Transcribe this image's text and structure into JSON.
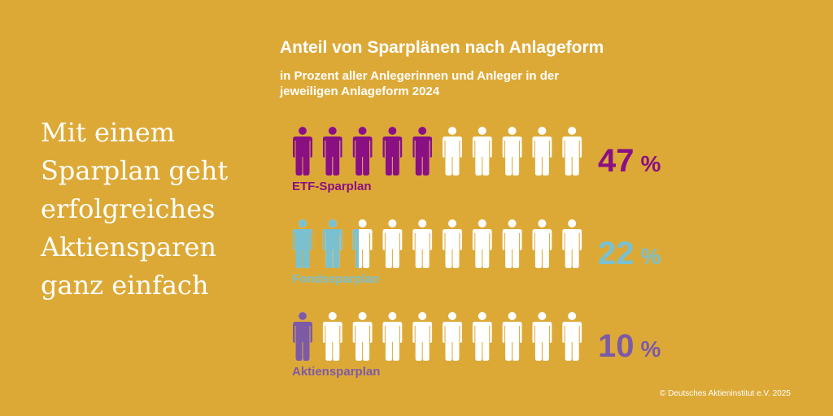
{
  "background": "#DDA936",
  "headline": [
    "Mit einem",
    "Sparplan geht",
    "erfolgreiches",
    "Aktiensparen",
    "ganz einfach"
  ],
  "chart_data": {
    "type": "bar",
    "title": "Anteil von Sparplänen nach Anlageform",
    "subtitle_lines": [
      "in Prozent aller Anlegerinnen und Anleger in der",
      "jeweiligen Anlageform 2024"
    ],
    "icons_per_row": 10,
    "base_color": "#FFFFFF",
    "categories": [
      "ETF-Sparplan",
      "Fondssparplan",
      "Aktiensparplan"
    ],
    "values": [
      47,
      22,
      10
    ],
    "value_labels": [
      "47",
      "22",
      "10"
    ],
    "unit": "%",
    "colors": [
      "#8A0F83",
      "#79C1D1",
      "#7D5AA6"
    ]
  },
  "copyright": "© Deutsches Aktieninstitut e.V. 2025"
}
